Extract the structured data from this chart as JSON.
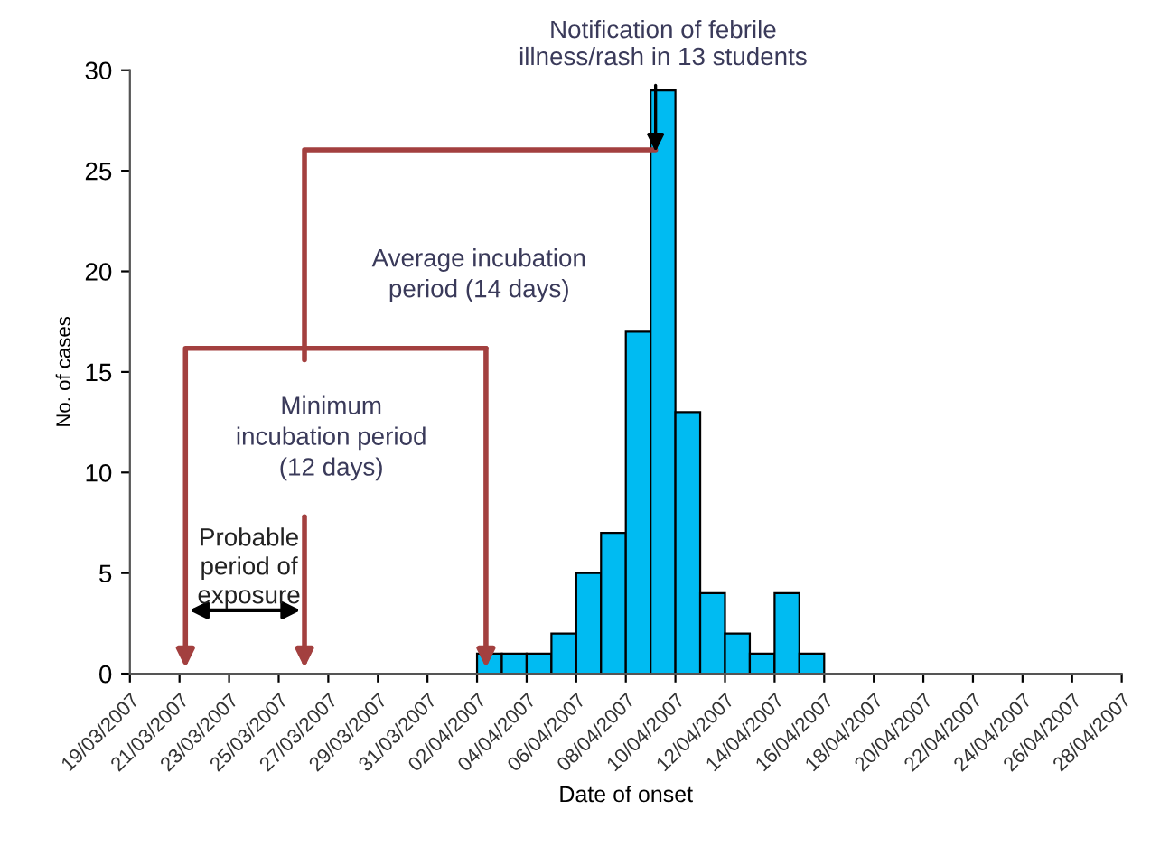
{
  "chart_data": {
    "type": "bar",
    "xlabel": "Date of onset",
    "ylabel": "No. of cases",
    "x": [
      "2007-04-02T12:00",
      "2007-04-03T12:00",
      "2007-04-04T12:00",
      "2007-04-05T12:00",
      "2007-04-06T12:00",
      "2007-04-07T12:00",
      "2007-04-08T12:00",
      "2007-04-09T12:00",
      "2007-04-10T12:00",
      "2007-04-11T12:00",
      "2007-04-12T12:00",
      "2007-04-13T12:00",
      "2007-04-14T12:00",
      "2007-04-15T12:00"
    ],
    "values": [
      1,
      1,
      1,
      2,
      5,
      7,
      17,
      29,
      13,
      4,
      2,
      1,
      4,
      1
    ],
    "color": "#00bbf2",
    "xlim": [
      "2007-03-19",
      "2007-04-28"
    ],
    "xticks": [
      {
        "value": "2007-03-19",
        "label": "19/03/2007"
      },
      {
        "value": "2007-03-21",
        "label": "21/03/2007"
      },
      {
        "value": "2007-03-23",
        "label": "23/03/2007"
      },
      {
        "value": "2007-03-25",
        "label": "25/03/2007"
      },
      {
        "value": "2007-03-27",
        "label": "27/03/2007"
      },
      {
        "value": "2007-03-29",
        "label": "29/03/2007"
      },
      {
        "value": "2007-03-31",
        "label": "31/03/2007"
      },
      {
        "value": "2007-04-02",
        "label": "02/04/2007"
      },
      {
        "value": "2007-04-04",
        "label": "04/04/2007"
      },
      {
        "value": "2007-04-06",
        "label": "06/04/2007"
      },
      {
        "value": "2007-04-08",
        "label": "08/04/2007"
      },
      {
        "value": "2007-04-10",
        "label": "10/04/2007"
      },
      {
        "value": "2007-04-12",
        "label": "12/04/2007"
      },
      {
        "value": "2007-04-14",
        "label": "14/04/2007"
      },
      {
        "value": "2007-04-16",
        "label": "16/04/2007"
      },
      {
        "value": "2007-04-18",
        "label": "18/04/2007"
      },
      {
        "value": "2007-04-20",
        "label": "20/04/2007"
      },
      {
        "value": "2007-04-22",
        "label": "22/04/2007"
      },
      {
        "value": "2007-04-24",
        "label": "24/04/2007"
      },
      {
        "value": "2007-04-26",
        "label": "26/04/2007"
      },
      {
        "value": "2007-04-28",
        "label": "28/04/2007"
      }
    ],
    "ylim": [
      0,
      30
    ],
    "yticks": [
      0,
      5,
      10,
      15,
      20,
      25,
      30
    ],
    "grid": false,
    "legend": false,
    "annotations": [
      {
        "text": "Notification of febrile\nillness/rash in 13 students",
        "x": "2007-04-09T12:00",
        "y": 29
      },
      "Average incubation\nperiod (14 days)",
      "Minimum\nincubation period\n(12 days)",
      "Probable\nperiod of\nexposure"
    ]
  }
}
